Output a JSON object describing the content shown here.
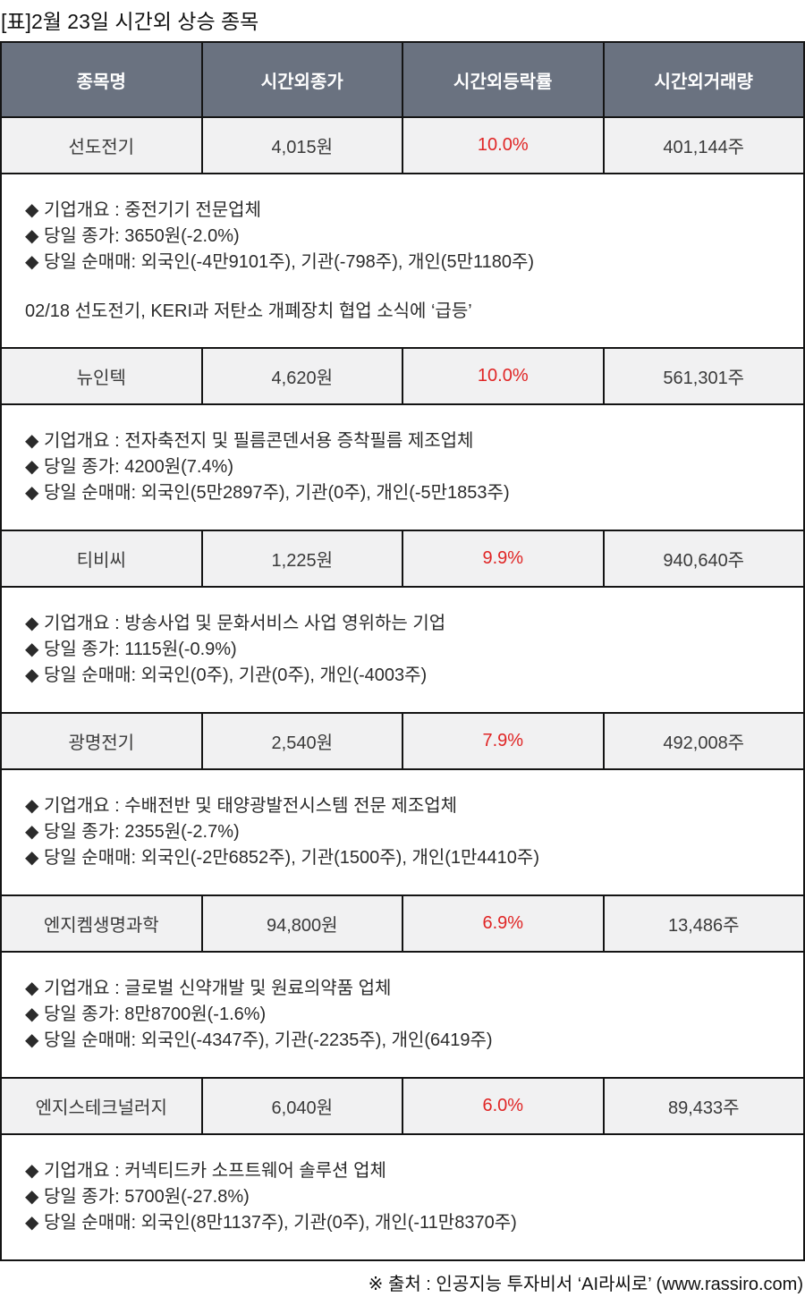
{
  "page": {
    "title": "[표]2월 23일 시간외 상승 종목",
    "footer": "※ 출처 : 인공지능 투자비서 ‘AI라씨로’ (www.rassiro.com)"
  },
  "colors": {
    "header_background": "#6a7280",
    "header_text": "#ffffff",
    "row_background": "#f1f1f2",
    "change_red": "#e02525",
    "border": "#141414"
  },
  "table": {
    "headers": [
      "종목명",
      "시간외종가",
      "시간외등락률",
      "시간외거래량"
    ],
    "groups": [
      {
        "name": "선도전기",
        "price": "4,015원",
        "change": "10.0%",
        "volume": "401,144주",
        "details": [
          "◆ 기업개요 : 중전기기 전문업체",
          "◆ 당일 종가: 3650원(-2.0%)",
          "◆ 당일 순매매: 외국인(-4만9101주), 기관(-798주), 개인(5만1180주)"
        ],
        "news": "02/18 선도전기, KERI과 저탄소 개폐장치 협업 소식에 ‘급등’"
      },
      {
        "name": "뉴인텍",
        "price": "4,620원",
        "change": "10.0%",
        "volume": "561,301주",
        "details": [
          "◆ 기업개요 : 전자축전지 및 필름콘덴서용 증착필름 제조업체",
          "◆ 당일 종가: 4200원(7.4%)",
          "◆ 당일 순매매: 외국인(5만2897주), 기관(0주), 개인(-5만1853주)"
        ]
      },
      {
        "name": "티비씨",
        "price": "1,225원",
        "change": "9.9%",
        "volume": "940,640주",
        "details": [
          "◆ 기업개요 : 방송사업 및 문화서비스 사업 영위하는 기업",
          "◆ 당일 종가: 1115원(-0.9%)",
          "◆ 당일 순매매: 외국인(0주), 기관(0주), 개인(-4003주)"
        ]
      },
      {
        "name": "광명전기",
        "price": "2,540원",
        "change": "7.9%",
        "volume": "492,008주",
        "details": [
          "◆ 기업개요 : 수배전반 및 태양광발전시스템 전문 제조업체",
          "◆ 당일 종가: 2355원(-2.7%)",
          "◆ 당일 순매매: 외국인(-2만6852주), 기관(1500주), 개인(1만4410주)"
        ]
      },
      {
        "name": "엔지켐생명과학",
        "price": "94,800원",
        "change": "6.9%",
        "volume": "13,486주",
        "details": [
          "◆ 기업개요 : 글로벌 신약개발 및 원료의약품 업체",
          "◆ 당일 종가: 8만8700원(-1.6%)",
          "◆ 당일 순매매: 외국인(-4347주), 기관(-2235주), 개인(6419주)"
        ]
      },
      {
        "name": "엔지스테크널러지",
        "price": "6,040원",
        "change": "6.0%",
        "volume": "89,433주",
        "details": [
          "◆ 기업개요 : 커넥티드카 소프트웨어 솔루션 업체",
          "◆ 당일 종가: 5700원(-27.8%)",
          "◆ 당일 순매매: 외국인(8만1137주), 기관(0주), 개인(-11만8370주)"
        ]
      }
    ]
  }
}
